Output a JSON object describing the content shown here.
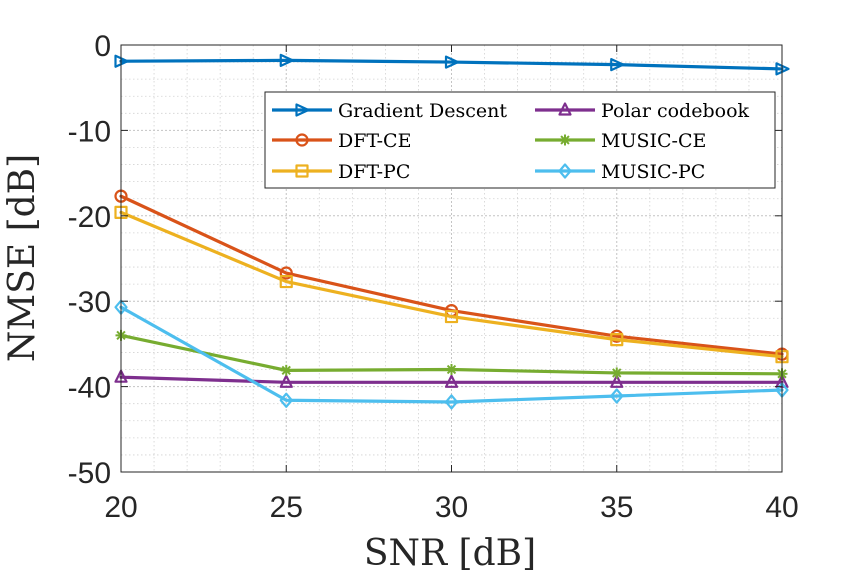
{
  "chart_data": {
    "type": "line",
    "title": "",
    "xlabel": "SNR [dB]",
    "ylabel": "NMSE [dB]",
    "x": [
      20,
      25,
      30,
      35,
      40
    ],
    "xlim": [
      20,
      40
    ],
    "ylim": [
      -50,
      0
    ],
    "xticks": [
      "20",
      "25",
      "30",
      "35",
      "40"
    ],
    "yticks": [
      "0",
      "-10",
      "-20",
      "-30",
      "-40",
      "-50"
    ],
    "grid": true,
    "minor_grid": true,
    "legend_location": "top-right",
    "series": [
      {
        "name": "Gradient Descent",
        "color": "#0072BD",
        "marker": "triangle-right",
        "values": [
          -1.9,
          -1.8,
          -2.0,
          -2.3,
          -2.8
        ]
      },
      {
        "name": "DFT-CE",
        "color": "#D95319",
        "marker": "circle",
        "values": [
          -17.7,
          -26.7,
          -31.1,
          -34.1,
          -36.2
        ]
      },
      {
        "name": "DFT-PC",
        "color": "#EDB120",
        "marker": "square",
        "values": [
          -19.6,
          -27.7,
          -31.8,
          -34.5,
          -36.5
        ]
      },
      {
        "name": "Polar codebook",
        "color": "#7E2F8E",
        "marker": "triangle-up",
        "values": [
          -38.9,
          -39.5,
          -39.5,
          -39.5,
          -39.5
        ]
      },
      {
        "name": "MUSIC-CE",
        "color": "#77AC30",
        "marker": "asterisk",
        "values": [
          -34.0,
          -38.1,
          -38.0,
          -38.4,
          -38.5
        ]
      },
      {
        "name": "MUSIC-PC",
        "color": "#4DBEEE",
        "marker": "diamond",
        "values": [
          -30.7,
          -41.6,
          -41.8,
          -41.1,
          -40.4
        ]
      }
    ]
  }
}
